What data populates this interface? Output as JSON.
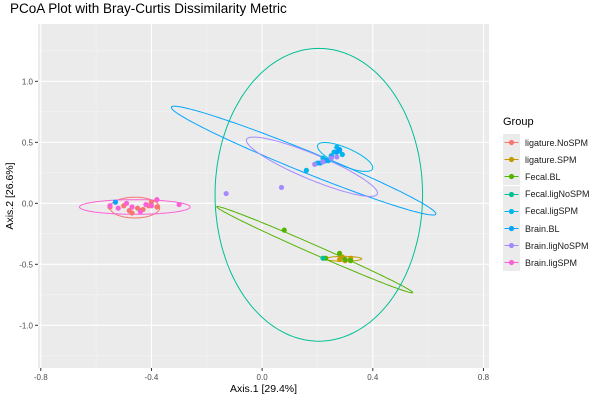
{
  "chart_data": {
    "type": "scatter",
    "title": "PCoA Plot with Bray-Curtis Dissimilarity Metric",
    "xlabel": "Axis.1   [29.4%]",
    "ylabel": "Axis.2   [26.6%]",
    "xlim": [
      -0.81,
      0.82
    ],
    "ylim": [
      -1.35,
      1.47
    ],
    "xticks": [
      -0.8,
      -0.4,
      0.0,
      0.4,
      0.8
    ],
    "xtick_labels": [
      "-0.8",
      "-0.4",
      "0.0",
      "0.4",
      "0.8"
    ],
    "yticks": [
      -1.0,
      -0.5,
      0.0,
      0.5,
      1.0
    ],
    "ytick_labels": [
      "-1.0",
      "-0.5",
      "0.0",
      "0.5",
      "1.0"
    ],
    "grid": true,
    "legend_title": "Group",
    "legend_position": "right",
    "series": [
      {
        "name": "ligature.NoSPM",
        "color": "#F8766D",
        "points": [
          [
            -0.55,
            -0.03
          ],
          [
            -0.5,
            -0.02
          ],
          [
            -0.48,
            -0.06
          ],
          [
            -0.47,
            -0.08
          ],
          [
            -0.45,
            -0.04
          ],
          [
            -0.44,
            -0.06
          ],
          [
            -0.43,
            -0.05
          ],
          [
            -0.41,
            -0.02
          ],
          [
            -0.4,
            0.01
          ],
          [
            -0.38,
            -0.03
          ]
        ],
        "ellipse": {
          "cx": -0.46,
          "cy": -0.035,
          "rx": 0.09,
          "ry": 0.085,
          "angle": 0
        }
      },
      {
        "name": "ligature.SPM",
        "color": "#C49A00",
        "points": [
          [
            0.28,
            -0.46
          ],
          [
            0.3,
            -0.47
          ],
          [
            0.32,
            -0.45
          ],
          [
            0.29,
            -0.44
          ]
        ],
        "ellipse": {
          "cx": 0.295,
          "cy": -0.455,
          "rx": 0.065,
          "ry": 0.02,
          "angle": 0
        }
      },
      {
        "name": "Fecal.BL",
        "color": "#53B400",
        "points": [
          [
            0.08,
            -0.22
          ],
          [
            0.23,
            -0.45
          ],
          [
            0.28,
            -0.41
          ],
          [
            0.3,
            -0.46
          ],
          [
            0.32,
            -0.47
          ]
        ],
        "ellipse": {
          "cx": 0.19,
          "cy": -0.38,
          "rx": 0.5,
          "ry": 0.028,
          "angle": -0.785
        }
      },
      {
        "name": "Fecal.ligNoSPM",
        "color": "#00C094",
        "points": [
          [
            0.22,
            -0.45
          ]
        ],
        "ellipse": {
          "cx": 0.205,
          "cy": 0.07,
          "rx": 0.375,
          "ry": 1.2,
          "angle": 0
        }
      },
      {
        "name": "Fecal.ligSPM",
        "color": "#00B6EB",
        "points": [
          [
            0.16,
            0.27
          ],
          [
            0.2,
            0.33
          ],
          [
            0.22,
            0.37
          ],
          [
            0.24,
            0.35
          ],
          [
            0.25,
            0.39
          ],
          [
            0.26,
            0.42
          ],
          [
            0.27,
            0.46
          ],
          [
            0.28,
            0.43
          ],
          [
            0.29,
            0.4
          ]
        ],
        "ellipse": {
          "cx": 0.3,
          "cy": 0.38,
          "rx": 0.145,
          "ry": 0.055,
          "angle": -0.9
        }
      },
      {
        "name": "Brain.BL",
        "color": "#06A4FF",
        "points": [
          [
            -0.53,
            0.01
          ],
          [
            0.21,
            0.33
          ],
          [
            0.23,
            0.35
          ],
          [
            0.25,
            0.38
          ],
          [
            0.27,
            0.42
          ],
          [
            0.28,
            0.44
          ]
        ],
        "ellipse": {
          "cx": 0.15,
          "cy": 0.35,
          "rx": 0.65,
          "ry": 0.07,
          "angle": -0.75
        }
      },
      {
        "name": "Brain.ligNoSPM",
        "color": "#A58AFF",
        "points": [
          [
            -0.13,
            0.08
          ],
          [
            0.07,
            0.13
          ],
          [
            0.19,
            0.32
          ],
          [
            0.22,
            0.34
          ],
          [
            0.25,
            0.37
          ],
          [
            0.27,
            0.38
          ]
        ],
        "ellipse": {
          "cx": 0.18,
          "cy": 0.3,
          "rx": 0.33,
          "ry": 0.08,
          "angle": -0.8
        }
      },
      {
        "name": "Brain.ligSPM",
        "color": "#FB61D7",
        "points": [
          [
            -0.55,
            -0.02
          ],
          [
            -0.52,
            -0.04
          ],
          [
            -0.49,
            0.0
          ],
          [
            -0.47,
            -0.03
          ],
          [
            -0.44,
            -0.07
          ],
          [
            -0.42,
            -0.01
          ],
          [
            -0.4,
            -0.02
          ],
          [
            -0.38,
            0.03
          ],
          [
            -0.3,
            -0.01
          ]
        ],
        "ellipse": {
          "cx": -0.46,
          "cy": -0.03,
          "rx": 0.2,
          "ry": 0.06,
          "angle": 0
        }
      }
    ]
  }
}
